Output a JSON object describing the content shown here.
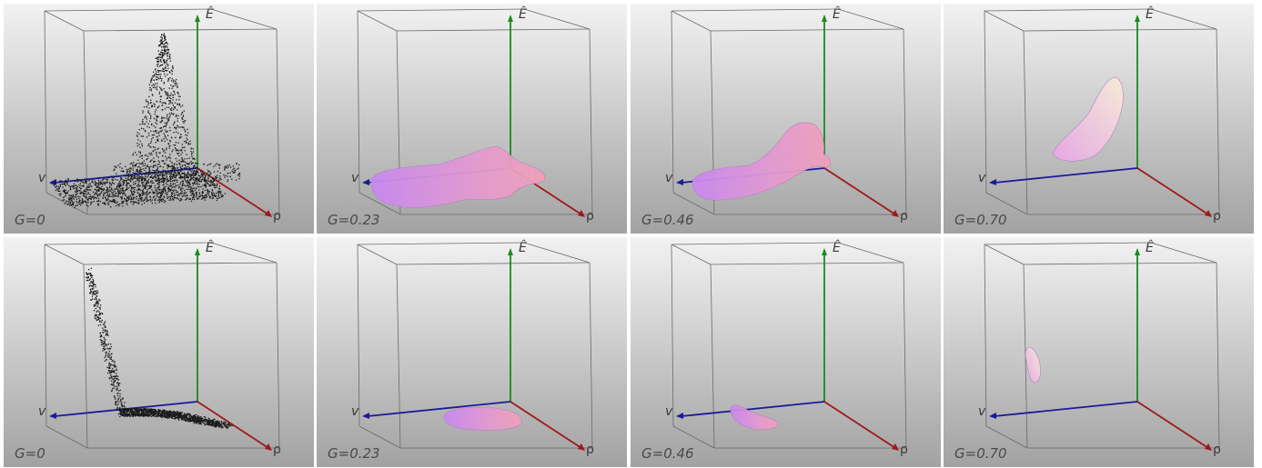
{
  "panels": [
    {
      "row": 1,
      "col": 1,
      "G": "G=0",
      "render": "scatter-peak"
    },
    {
      "row": 1,
      "col": 2,
      "G": "G=0.23",
      "render": "blob-long"
    },
    {
      "row": 1,
      "col": 3,
      "G": "G=0.46",
      "render": "blob-rising"
    },
    {
      "row": 1,
      "col": 4,
      "G": "G=0.70",
      "render": "blob-high"
    },
    {
      "row": 2,
      "col": 1,
      "G": "G=0",
      "render": "scatter-curve"
    },
    {
      "row": 2,
      "col": 2,
      "G": "G=0.23",
      "render": "blob-small"
    },
    {
      "row": 2,
      "col": 3,
      "G": "G=0.46",
      "render": "blob-smaller"
    },
    {
      "row": 2,
      "col": 4,
      "G": "G=0.70",
      "render": "blob-tiny"
    }
  ],
  "axes": {
    "e": "Ê",
    "v": "v",
    "rho": "ρ"
  },
  "colors": {
    "e_axis": "#1a8a1a",
    "v_axis": "#1a1a9a",
    "rho_axis": "#a01818",
    "blob_violet": "#c888f0",
    "blob_pink": "#f0a0b8"
  }
}
